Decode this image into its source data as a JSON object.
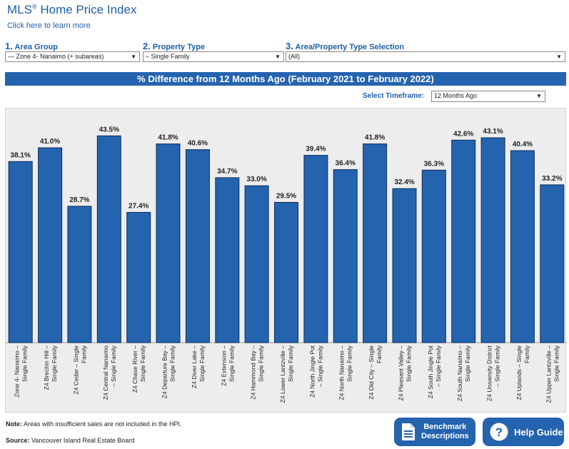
{
  "header": {
    "title": "MLS",
    "title_reg": "®",
    "title_rest": " Home Price Index",
    "learn_link": "Click here to learn more"
  },
  "selectors": [
    {
      "num": "1.",
      "label": "Area Group",
      "value": "— Zone 4- Nanaimo (+ subareas)"
    },
    {
      "num": "2.",
      "label": "Property Type",
      "value": "– Single Family"
    },
    {
      "num": "3.",
      "label": "Area/Property Type Selection",
      "value": "(All)"
    }
  ],
  "timeframe": {
    "label": "Select Timeframe:",
    "value": "12 Months Ago"
  },
  "footer": {
    "note_bold": "Note:",
    "note_text": " Areas with insufficient sales are not included in the HPI.",
    "source_bold": "Source:",
    "source_text": " Vancouver Island Real Estate Board"
  },
  "buttons": {
    "benchmark_line1": "Benchmark",
    "benchmark_line2": "Descriptions",
    "help": "Help Guide"
  },
  "colors": {
    "bar": "#2463ae",
    "accent": "#1f5fa8",
    "plot_bg": "#ededed"
  },
  "chart_data": {
    "type": "bar",
    "title": "% Difference from 12 Months Ago (February 2021 to February 2022)",
    "ylim": [
      0,
      45.5
    ],
    "grid": false,
    "legend": "none",
    "categories": [
      [
        "Zone 4- Nanaimo –",
        "Single Family"
      ],
      [
        "Z4 Brechin Hill –",
        "Single Family"
      ],
      [
        "Z4 Cedar – Single",
        "Family"
      ],
      [
        "Z4 Central Nanaimo",
        "– Single Family"
      ],
      [
        "Z4 Chase River –",
        "Single Family"
      ],
      [
        "Z4 Departure Bay –",
        "Single Family"
      ],
      [
        "Z4 Diver Lake –",
        "Single Family"
      ],
      [
        "Z4 Extension –",
        "Single Family"
      ],
      [
        "Z4 Hammond Bay –",
        "Single Family"
      ],
      [
        "Z4 Lower Lantzville –",
        "Single Family"
      ],
      [
        "Z4 North Jingle Pot",
        "– Single Family"
      ],
      [
        "Z4 North Nanaimo –",
        "Single Family"
      ],
      [
        "Z4 Old City – Single",
        "Family"
      ],
      [
        "Z4 Pleasant Valley –",
        "Single Family"
      ],
      [
        "Z4 South Jingle Pot",
        "– Single Family"
      ],
      [
        "Z4 South Nanaimo –",
        "Single Family"
      ],
      [
        "Z4 University District",
        "– Single Family"
      ],
      [
        "Z4 Uplands – Single",
        "Family"
      ],
      [
        "Z4 Upper Lantzville –",
        "Single Family"
      ]
    ],
    "values": [
      38.1,
      41.0,
      28.7,
      43.5,
      27.4,
      41.8,
      40.6,
      34.7,
      33.0,
      29.5,
      39.4,
      36.4,
      41.8,
      32.4,
      36.3,
      42.6,
      43.1,
      40.4,
      33.2
    ],
    "labels": [
      "38.1%",
      "41.0%",
      "28.7%",
      "43.5%",
      "27.4%",
      "41.8%",
      "40.6%",
      "34.7%",
      "33.0%",
      "29.5%",
      "39.4%",
      "36.4%",
      "41.8%",
      "32.4%",
      "36.3%",
      "42.6%",
      "43.1%",
      "40.4%",
      "33.2%"
    ]
  }
}
